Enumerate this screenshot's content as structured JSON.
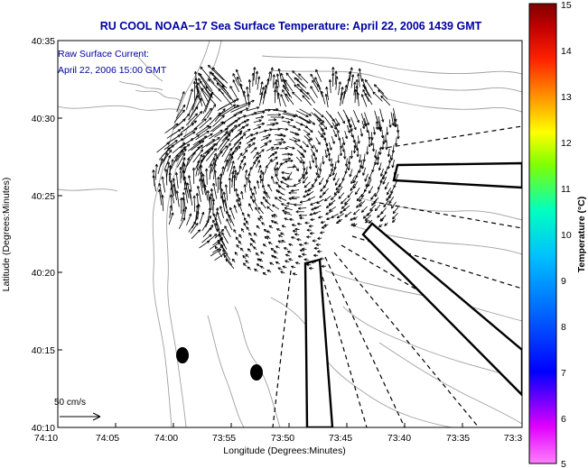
{
  "title": "RU COOL  NOAA−17  Sea Surface Temperature:  April 22, 2006 1439 GMT",
  "current_label": {
    "line1": "Raw Surface Current:",
    "line2": "April 22, 2006 15:00 GMT"
  },
  "scale_bar_label": "50 cm/s",
  "x_axis": {
    "label": "Longitude (Degrees:Minutes)",
    "ticks": [
      "74:10",
      "74:05",
      "74:00",
      "73:55",
      "73:50",
      "73:45",
      "73:40",
      "73:35",
      "73:3"
    ]
  },
  "y_axis": {
    "label": "Latitude (Degrees:Minutes)",
    "ticks": [
      "40:35",
      "40:30",
      "40:25",
      "40:20",
      "40:15",
      "40:10"
    ]
  },
  "colorbar": {
    "label": "Temperature (°C)",
    "ticks": [
      "15",
      "14",
      "13",
      "12",
      "11",
      "10",
      "9",
      "8",
      "7",
      "6",
      "5"
    ],
    "colors": [
      "#800000",
      "#ff0000",
      "#ff8000",
      "#ffff00",
      "#00ff80",
      "#00ffff",
      "#0080ff",
      "#0000ff",
      "#8000ff",
      "#ff00ff",
      "#ff80ff"
    ]
  },
  "colors": {
    "title": "#0000a0",
    "annotation": "#0000a0",
    "frame": "#000000",
    "contour": "#aaaaaa",
    "vectors": "#000000"
  }
}
